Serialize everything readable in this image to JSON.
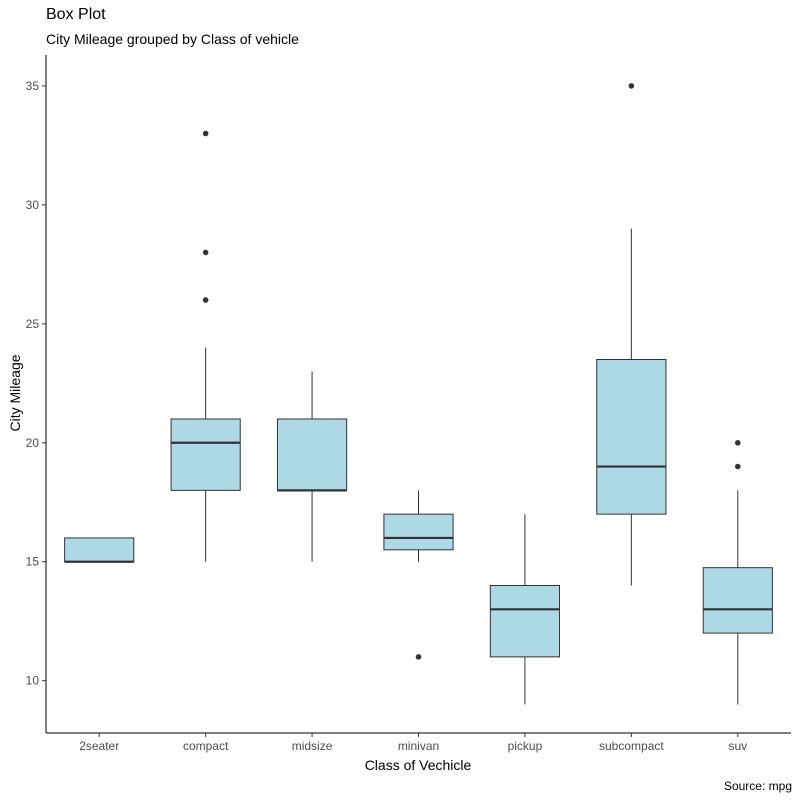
{
  "chart_data": {
    "type": "box",
    "title": "Box Plot",
    "subtitle": "City Mileage grouped by Class of vehicle",
    "xlabel": "Class of Vechicle",
    "ylabel": "City Mileage",
    "caption": "Source: mpg",
    "ylim": [
      7.8,
      36.3
    ],
    "yticks": [
      10,
      15,
      20,
      25,
      30,
      35
    ],
    "grid": false,
    "fill_color": "#ADD8E6",
    "line_color": "#333333",
    "categories": [
      "2seater",
      "compact",
      "midsize",
      "minivan",
      "pickup",
      "subcompact",
      "suv"
    ],
    "boxes": [
      {
        "category": "2seater",
        "min": 15,
        "q1": 15,
        "median": 15,
        "q3": 16,
        "max": 16,
        "outliers": []
      },
      {
        "category": "compact",
        "min": 15,
        "q1": 18,
        "median": 20,
        "q3": 21,
        "max": 24,
        "outliers": [
          26,
          28,
          33
        ]
      },
      {
        "category": "midsize",
        "min": 15,
        "q1": 18,
        "median": 18,
        "q3": 21,
        "max": 23,
        "outliers": []
      },
      {
        "category": "minivan",
        "min": 15,
        "q1": 15.5,
        "median": 16,
        "q3": 17,
        "max": 18,
        "outliers": [
          11
        ]
      },
      {
        "category": "pickup",
        "min": 9,
        "q1": 11,
        "median": 13,
        "q3": 14,
        "max": 17,
        "outliers": []
      },
      {
        "category": "subcompact",
        "min": 14,
        "q1": 17,
        "median": 19,
        "q3": 23.5,
        "max": 29,
        "outliers": [
          35
        ]
      },
      {
        "category": "suv",
        "min": 9,
        "q1": 12,
        "median": 13,
        "q3": 14.75,
        "max": 18,
        "outliers": [
          19,
          20
        ]
      }
    ]
  }
}
